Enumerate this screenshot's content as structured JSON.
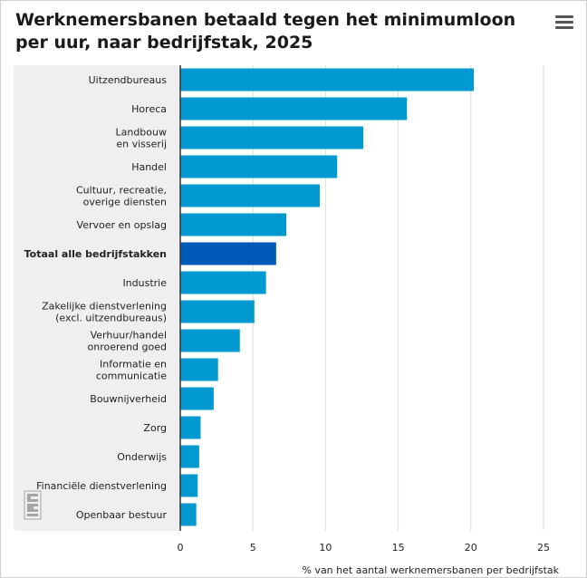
{
  "title": "Werknemersbanen betaald tegen het minimumloon per uur, naar bedrijfstak, 2025",
  "menu_icon": "hamburger-menu-icon",
  "logo_icon": "cbs-logo-icon",
  "colors": {
    "bar": "#0099d0",
    "highlight": "#005ab8",
    "panel": "#efefef",
    "grid": "#dcdcdc"
  },
  "chart_data": {
    "type": "bar",
    "orientation": "horizontal",
    "title": "Werknemersbanen betaald tegen het minimumloon per uur, naar bedrijfstak, 2025",
    "xlabel": "% van het aantal werknemersbanen per bedrijfstak",
    "ylabel": "",
    "xlim": [
      0,
      25
    ],
    "xticks": [
      0,
      5,
      10,
      15,
      20,
      25
    ],
    "grid": true,
    "highlight": "Totaal alle bedrijfstakken",
    "categories": [
      "Uitzendbureaus",
      "Horeca",
      "Landbouw en visserij",
      "Handel",
      "Cultuur, recreatie, overige diensten",
      "Vervoer en opslag",
      "Totaal alle bedrijfstakken",
      "Industrie",
      "Zakelijke dienstverlening (excl. uitzendbureaus)",
      "Verhuur/handel onroerend goed",
      "Informatie en communicatie",
      "Bouwnijverheid",
      "Zorg",
      "Onderwijs",
      "Financiële dienstverlening",
      "Openbaar bestuur"
    ],
    "category_lines": [
      [
        "Uitzendbureaus"
      ],
      [
        "Horeca"
      ],
      [
        "Landbouw",
        "en visserij"
      ],
      [
        "Handel"
      ],
      [
        "Cultuur, recreatie,",
        "overige diensten"
      ],
      [
        "Vervoer en opslag"
      ],
      [
        "Totaal alle bedrijfstakken"
      ],
      [
        "Industrie"
      ],
      [
        "Zakelijke dienstverlening",
        "(excl. uitzendbureaus)"
      ],
      [
        "Verhuur/handel",
        "onroerend goed"
      ],
      [
        "Informatie en",
        "communicatie"
      ],
      [
        "Bouwnijverheid"
      ],
      [
        "Zorg"
      ],
      [
        "Onderwijs"
      ],
      [
        "Financiële dienstverlening"
      ],
      [
        "Openbaar bestuur"
      ]
    ],
    "values": [
      20.2,
      15.6,
      12.6,
      10.8,
      9.6,
      7.3,
      6.6,
      5.9,
      5.1,
      4.1,
      2.6,
      2.3,
      1.4,
      1.3,
      1.2,
      1.1
    ]
  }
}
